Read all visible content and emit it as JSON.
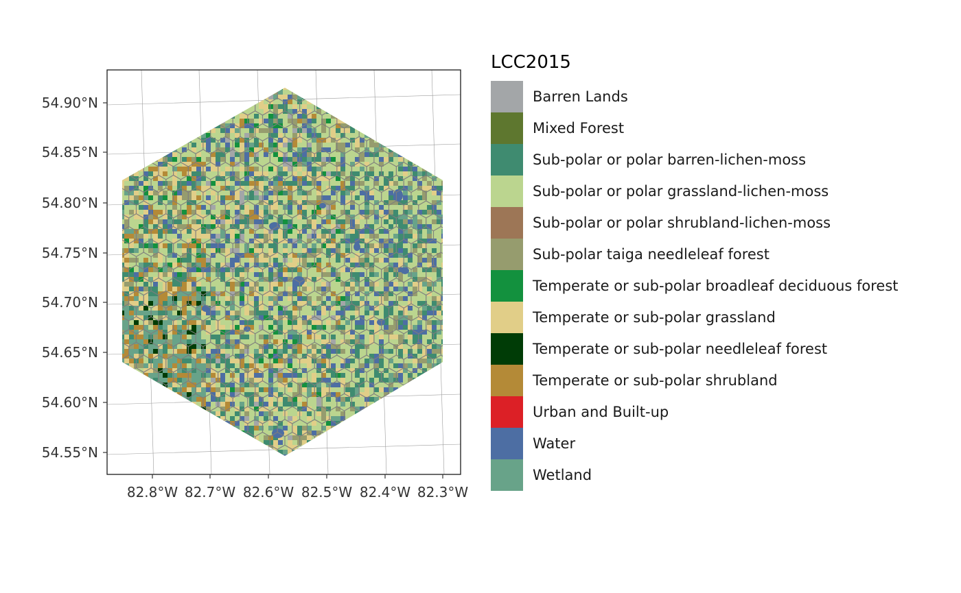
{
  "map": {
    "lat_labels": [
      "54.90°N",
      "54.85°N",
      "54.80°N",
      "54.75°N",
      "54.70°N",
      "54.65°N",
      "54.60°N",
      "54.55°N"
    ],
    "lon_labels": [
      "82.8°W",
      "82.7°W",
      "82.6°W",
      "82.5°W",
      "82.4°W",
      "82.3°W"
    ]
  },
  "legend": {
    "title": "LCC2015",
    "items": [
      {
        "label": "Barren Lands",
        "color": "#a3a6a8"
      },
      {
        "label": "Mixed Forest",
        "color": "#5e772f"
      },
      {
        "label": "Sub-polar or polar barren-lichen-moss",
        "color": "#3f8b70"
      },
      {
        "label": "Sub-polar or polar grassland-lichen-moss",
        "color": "#bbd58f"
      },
      {
        "label": "Sub-polar or polar shrubland-lichen-moss",
        "color": "#9d7656"
      },
      {
        "label": "Sub-polar taiga needleleaf forest",
        "color": "#969c6e"
      },
      {
        "label": "Temperate or sub-polar broadleaf deciduous forest",
        "color": "#13913e"
      },
      {
        "label": "Temperate or sub-polar grassland",
        "color": "#e1ce88"
      },
      {
        "label": "Temperate or sub-polar needleleaf forest",
        "color": "#003c06"
      },
      {
        "label": "Temperate or sub-polar shrubland",
        "color": "#b48a37"
      },
      {
        "label": "Urban and Built-up",
        "color": "#dc2026"
      },
      {
        "label": "Water",
        "color": "#4d6ea3"
      },
      {
        "label": "Wetland",
        "color": "#68a389"
      }
    ]
  }
}
